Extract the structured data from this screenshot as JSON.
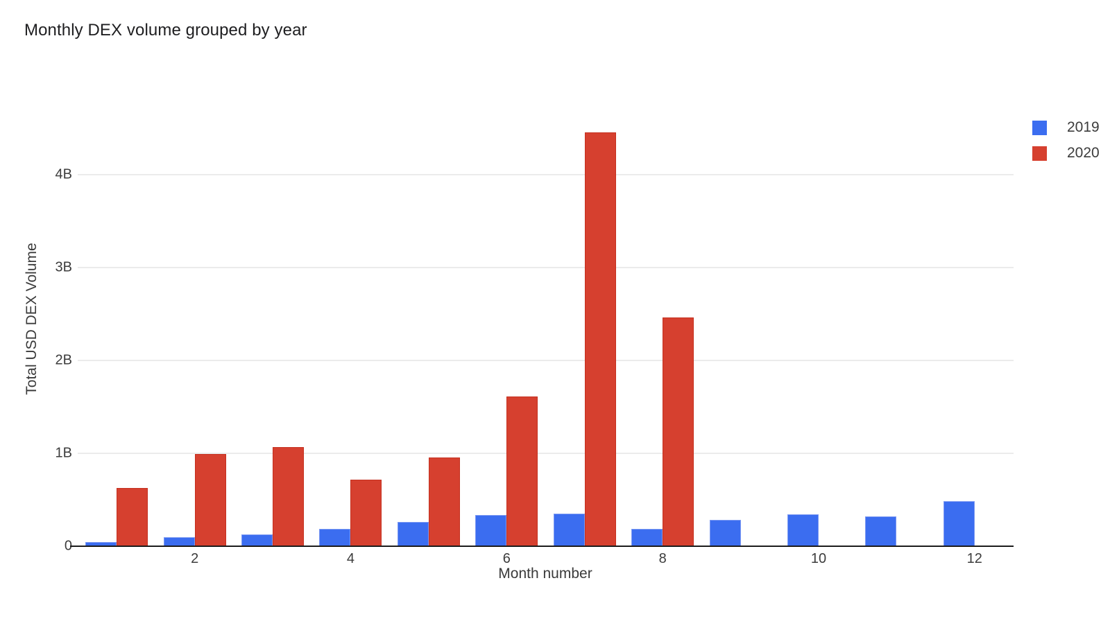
{
  "title": "Monthly DEX volume grouped by year",
  "legend": {
    "position": "top-right",
    "items": [
      {
        "label": "2019",
        "color": "#3B6DF0"
      },
      {
        "label": "2020",
        "color": "#D6402F"
      }
    ]
  },
  "chart_data": {
    "type": "bar",
    "mode": "grouped",
    "title": "Monthly DEX volume grouped by year",
    "xlabel": "Month number",
    "ylabel": "Total USD DEX Volume",
    "unit": "billions USD",
    "categories": [
      1,
      2,
      3,
      4,
      5,
      6,
      7,
      8,
      9,
      10,
      11,
      12
    ],
    "series": [
      {
        "name": "2019",
        "color": "#3B6DF0",
        "values": [
          0.04,
          0.09,
          0.12,
          0.18,
          0.26,
          0.33,
          0.35,
          0.18,
          0.28,
          0.34,
          0.32,
          0.48
        ]
      },
      {
        "name": "2020",
        "color": "#D6402F",
        "values": [
          0.62,
          0.99,
          1.06,
          0.71,
          0.95,
          1.61,
          4.45,
          2.46,
          null,
          null,
          null,
          null
        ]
      }
    ],
    "xlim": [
      0.5,
      12.5
    ],
    "ylim": [
      0,
      4.75
    ],
    "x_ticks": [
      2,
      4,
      6,
      8,
      10,
      12
    ],
    "y_ticks": [
      {
        "value": 0,
        "label": "0"
      },
      {
        "value": 1,
        "label": "1B"
      },
      {
        "value": 2,
        "label": "2B"
      },
      {
        "value": 3,
        "label": "3B"
      },
      {
        "value": 4,
        "label": "4B"
      }
    ],
    "grid": "horizontal-only",
    "legend_position": "top-right"
  },
  "colors": {
    "background": "#ffffff",
    "gridline": "#ebebeb",
    "axis_line": "#1b1b1b",
    "tick_text": "#3c3c3c",
    "title_text": "#1e1e20"
  }
}
